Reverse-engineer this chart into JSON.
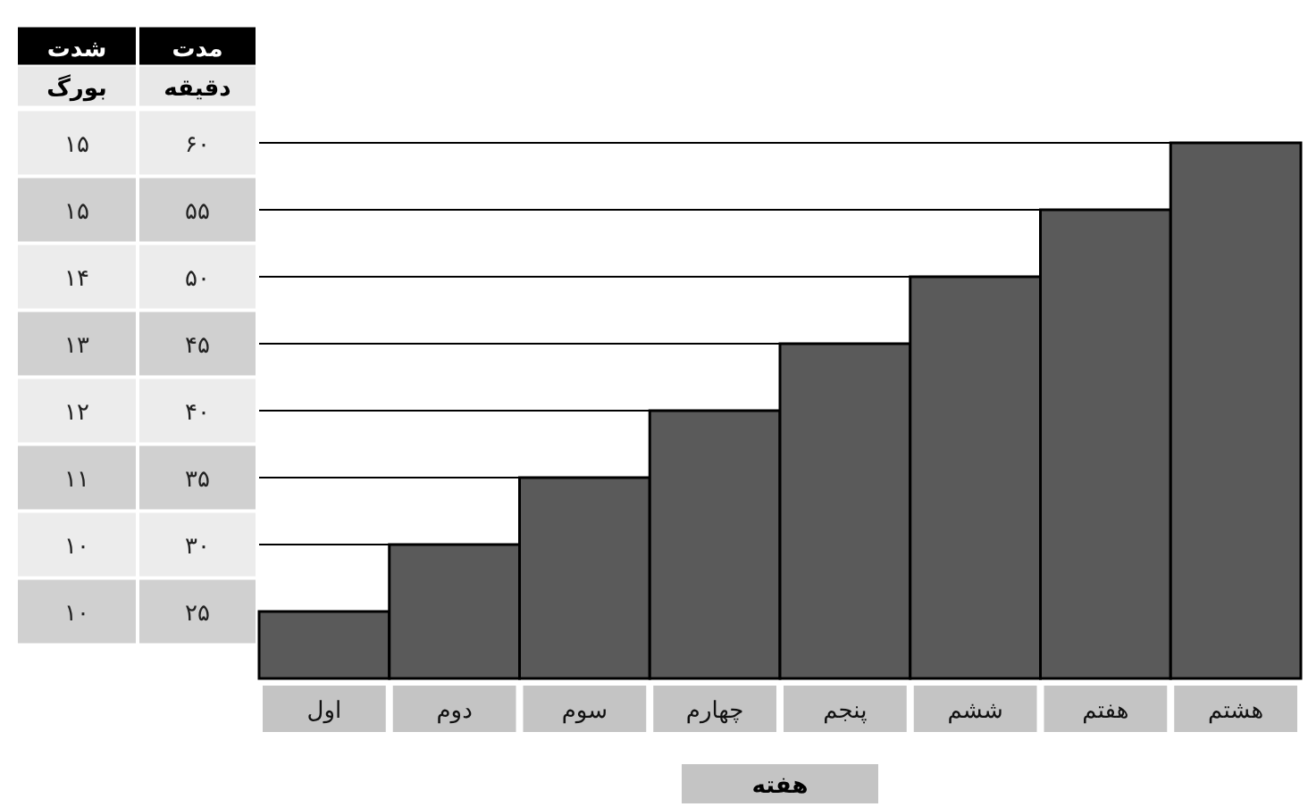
{
  "chart_data": {
    "type": "bar",
    "xlabel": "هفته",
    "ylabel": "مدت دقیقه",
    "categories": [
      "اول",
      "دوم",
      "سوم",
      "چهارم",
      "پنجم",
      "ششم",
      "هفتم",
      "هشتم"
    ],
    "series": [
      {
        "color": "#5a5a5a",
        "values": [
          25,
          30,
          35,
          40,
          45,
          50,
          55,
          60
        ]
      }
    ],
    "ylim": [
      20,
      60
    ],
    "yticks": [
      {
        "value": 60,
        "label": "۶۰"
      },
      {
        "value": 55,
        "label": "۵۵"
      },
      {
        "value": 50,
        "label": "۵۰"
      },
      {
        "value": 45,
        "label": "۴۵"
      },
      {
        "value": 40,
        "label": "۴۰"
      },
      {
        "value": 35,
        "label": "۳۵"
      },
      {
        "value": 30,
        "label": "۳۰"
      },
      {
        "value": 25,
        "label": "۲۵"
      }
    ],
    "annotations": [
      "شدت بورگ",
      "۱۵",
      "۱۵",
      "۱۴",
      "۱۳",
      "۱۲",
      "۱۱",
      "۱۰",
      "۱۰"
    ],
    "grid": "y"
  }
}
